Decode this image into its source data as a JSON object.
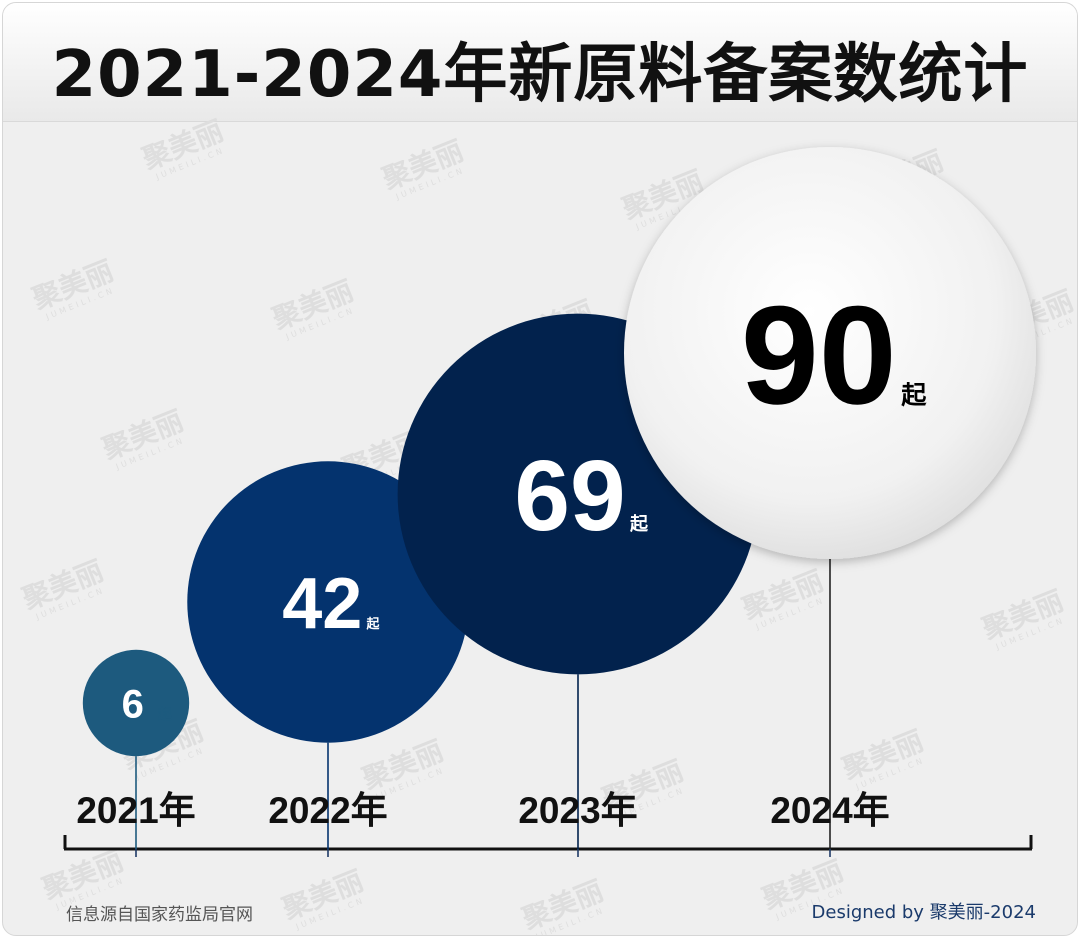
{
  "title": "2021-2024年新原料备案数统计",
  "chart_data": {
    "type": "bubble",
    "title": "2021-2024年新原料备案数统计",
    "categories": [
      "2021年",
      "2022年",
      "2023年",
      "2024年"
    ],
    "values": [
      6,
      42,
      69,
      90
    ],
    "unit": "起",
    "colors": [
      "#1d5a7e",
      "#04336e",
      "#02224d",
      "#f3f3f3"
    ],
    "value_text_colors": [
      "#ffffff",
      "#ffffff",
      "#ffffff",
      "#000000"
    ]
  },
  "footer": {
    "source": "信息源自国家药监局官网",
    "credit": "Designed by 聚美丽-2024"
  },
  "watermark": {
    "text": "聚美丽",
    "subtext": "JUMEILI.CN"
  }
}
